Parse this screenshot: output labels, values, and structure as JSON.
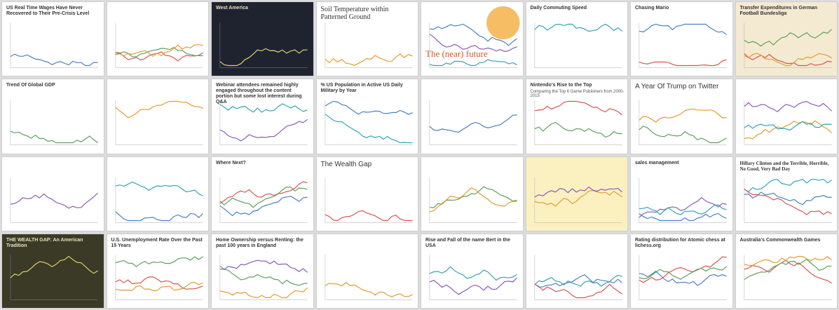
{
  "gallery": [
    {
      "title": "US Real Time Wages Have Never Recovered to Their Pre-Crisis Level"
    },
    {
      "title": "West America"
    },
    {
      "title": "Soil Temperature within Patterned Ground"
    },
    {
      "title": "The (near) future"
    },
    {
      "title": "Daily Commuting Speed"
    },
    {
      "title": "Chasing Mario"
    },
    {
      "title": "Transfer Expenditures in German Football Bundesliga"
    },
    {
      "title": "Trend Of Global GDP"
    },
    {
      "title": "Webinar attendees remained highly engaged throughout the content portion but some lost interest during Q&A"
    },
    {
      "title": "% US Population in Active US Daily Military by Year"
    },
    {
      "title": "Nintendo's Rise to the Top",
      "subtitle": "Comparing the Top 6 Game Publishers from 2000-2015"
    },
    {
      "title": "A Year Of Trump on Twitter"
    },
    {
      "title": "Where Next?"
    },
    {
      "title": "The Wealth Gap"
    },
    {
      "title": "sales management"
    },
    {
      "title": "Hillary Clinton and the Terrible, Horrible, No Good, Very Bad Day"
    },
    {
      "title": "THE WEALTH GAP: An American Tradition"
    },
    {
      "title": "U.S. Unemployment Rate Over the Past 15 Years"
    },
    {
      "title": "Home Ownership versus Renting: the past 100 years in England"
    },
    {
      "title": "Rise and Fall of the name Bert in the USA"
    },
    {
      "title": "Rating distribution for Atomic chess at lichess.org"
    },
    {
      "title": "Australia's Commonwealth Games"
    }
  ]
}
